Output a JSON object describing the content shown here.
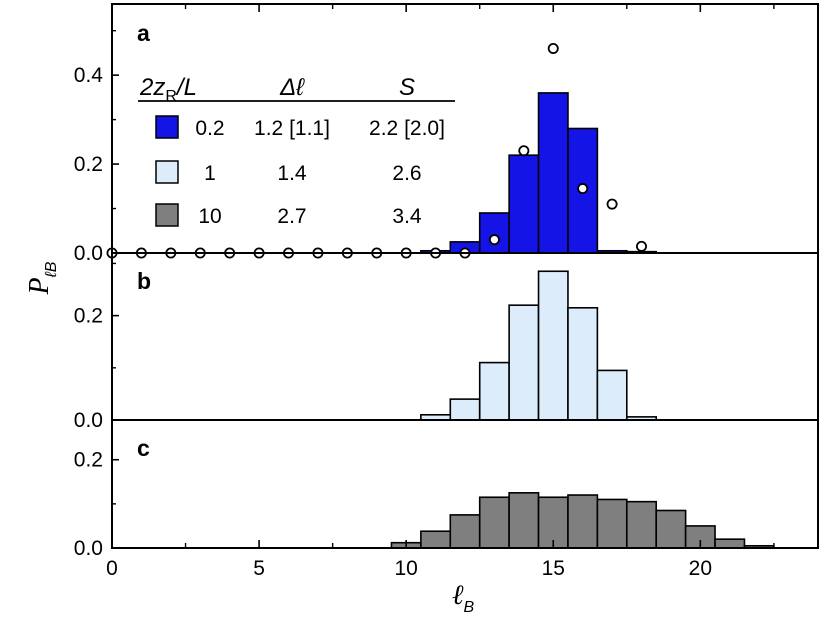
{
  "chart_data": {
    "type": "bar",
    "xlabel": "ℓ",
    "xlabel_sub": "B",
    "ylabel": "P",
    "ylabel_sub": "ℓB",
    "xlim": [
      0,
      24
    ],
    "x_ticks": [
      0,
      5,
      10,
      15,
      20
    ],
    "x_tick_labels": [
      "0",
      "5",
      "10",
      "15",
      "20"
    ],
    "legend": {
      "headers": {
        "col1": "2z",
        "col1_sub": "R",
        "col1_tail": "/L",
        "col2": "Δℓ",
        "col3": "S"
      },
      "rows": [
        {
          "swatch": "#1414e6",
          "col1": "0.2",
          "col2": "1.2 [1.1]",
          "col3": "2.2 [2.0]"
        },
        {
          "swatch": "#dcecfa",
          "col1": "1",
          "col2": "1.4",
          "col3": "2.6"
        },
        {
          "swatch": "#7f7f7f",
          "col1": "10",
          "col2": "2.7",
          "col3": "3.4"
        }
      ]
    },
    "panels": [
      {
        "label": "a",
        "ylim": [
          0,
          0.56
        ],
        "y_ticks": [
          0.0,
          0.2,
          0.4
        ],
        "y_tick_labels": [
          "0.0",
          "0.2",
          "0.4"
        ],
        "color": "#1414e6",
        "bars": {
          "x": [
            11,
            12,
            13,
            14,
            15,
            16,
            17,
            18
          ],
          "values": [
            0.005,
            0.025,
            0.09,
            0.22,
            0.36,
            0.28,
            0.005,
            0.003
          ]
        },
        "circles": {
          "x": [
            0,
            1,
            2,
            3,
            4,
            5,
            6,
            7,
            8,
            9,
            10,
            11,
            12,
            13,
            14,
            15,
            16,
            17,
            18
          ],
          "values": [
            0,
            0,
            0,
            0,
            0,
            0,
            0,
            0,
            0,
            0,
            0,
            0,
            0,
            0.03,
            0.23,
            0.46,
            0.145,
            0.11,
            0.015
          ]
        }
      },
      {
        "label": "b",
        "ylim": [
          0,
          0.32
        ],
        "y_ticks": [
          0.0,
          0.2
        ],
        "y_tick_labels": [
          "0.0",
          "0.2"
        ],
        "color": "#dcecfa",
        "bars": {
          "x": [
            11,
            12,
            13,
            14,
            15,
            16,
            17,
            18
          ],
          "values": [
            0.01,
            0.04,
            0.11,
            0.22,
            0.285,
            0.215,
            0.095,
            0.006
          ]
        }
      },
      {
        "label": "c",
        "ylim": [
          0,
          0.29
        ],
        "y_ticks": [
          0.0,
          0.2
        ],
        "y_tick_labels": [
          "0.0",
          "0.2"
        ],
        "color": "#7f7f7f",
        "bars": {
          "x": [
            10,
            11,
            12,
            13,
            14,
            15,
            16,
            17,
            18,
            19,
            20,
            21,
            22
          ],
          "values": [
            0.012,
            0.038,
            0.075,
            0.115,
            0.125,
            0.115,
            0.12,
            0.11,
            0.105,
            0.085,
            0.05,
            0.02,
            0.005
          ]
        }
      }
    ]
  }
}
